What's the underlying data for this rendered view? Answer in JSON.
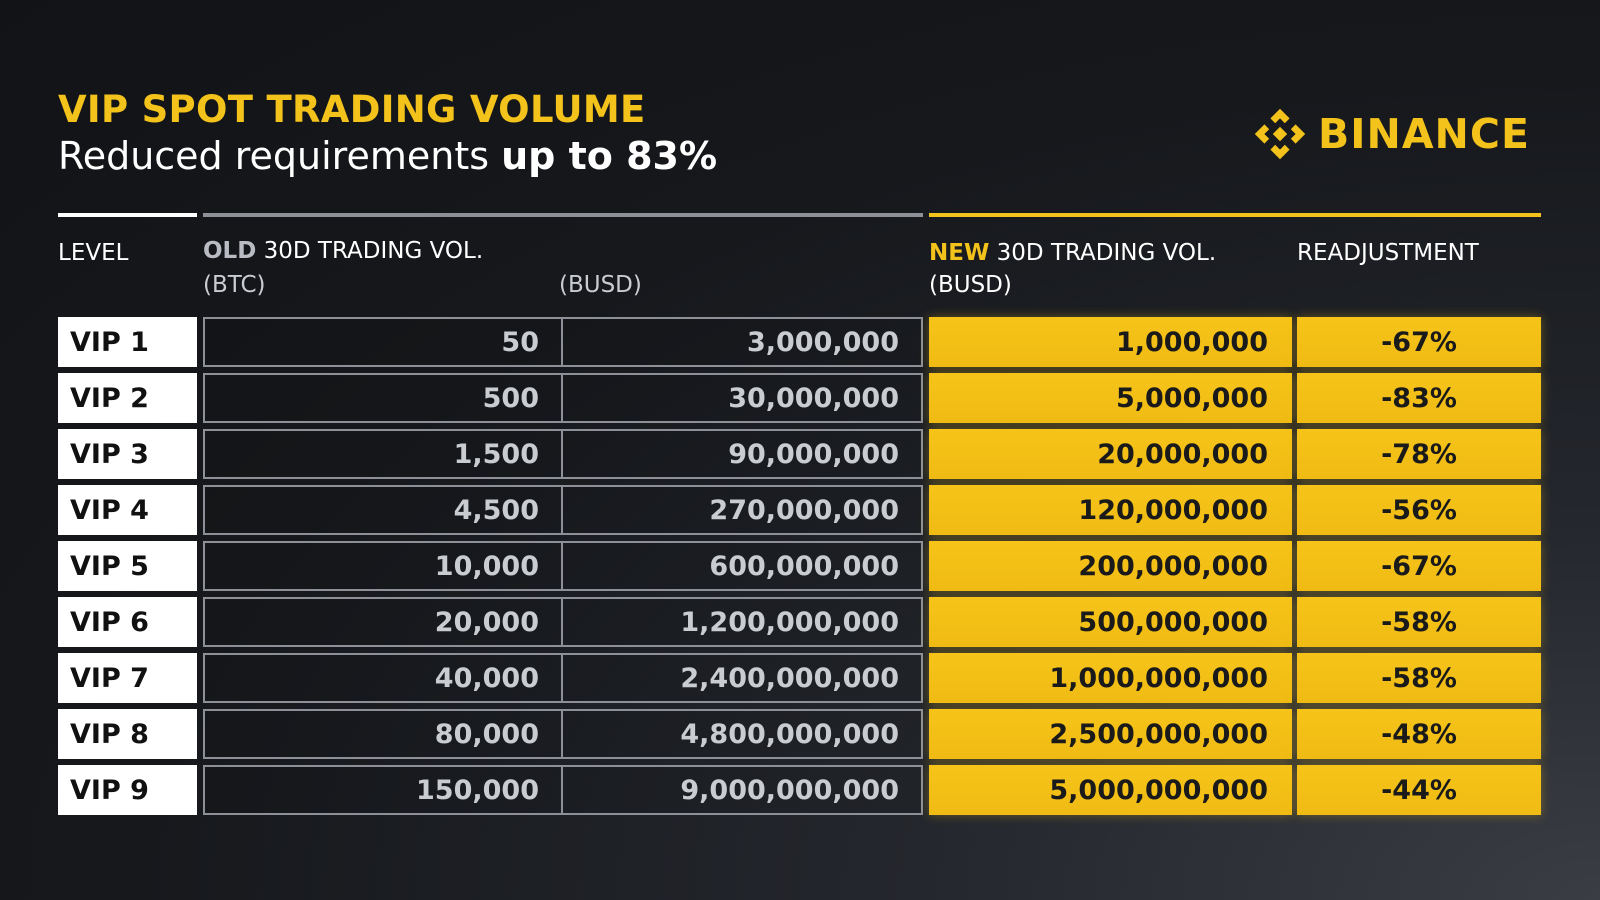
{
  "header": {
    "title": "VIP SPOT TRADING VOLUME",
    "subtitle_prefix": "Reduced requirements ",
    "subtitle_bold": "up to 83%"
  },
  "logo": {
    "icon": "binance-diamond-icon",
    "text": "BINANCE"
  },
  "columns": {
    "level": "LEVEL",
    "old_prefix": "OLD",
    "old_label": " 30D TRADING VOL.",
    "old_btc_unit": "(BTC)",
    "old_busd_unit": "(BUSD)",
    "new_prefix": "NEW",
    "new_label": " 30D TRADING VOL.",
    "new_unit": "(BUSD)",
    "readjustment": "READJUSTMENT"
  },
  "rows": [
    {
      "level": "VIP 1",
      "old_btc": "50",
      "old_busd": "3,000,000",
      "new_busd": "1,000,000",
      "readjustment": "-67%"
    },
    {
      "level": "VIP 2",
      "old_btc": "500",
      "old_busd": "30,000,000",
      "new_busd": "5,000,000",
      "readjustment": "-83%"
    },
    {
      "level": "VIP 3",
      "old_btc": "1,500",
      "old_busd": "90,000,000",
      "new_busd": "20,000,000",
      "readjustment": "-78%"
    },
    {
      "level": "VIP 4",
      "old_btc": "4,500",
      "old_busd": "270,000,000",
      "new_busd": "120,000,000",
      "readjustment": "-56%"
    },
    {
      "level": "VIP 5",
      "old_btc": "10,000",
      "old_busd": "600,000,000",
      "new_busd": "200,000,000",
      "readjustment": "-67%"
    },
    {
      "level": "VIP 6",
      "old_btc": "20,000",
      "old_busd": "1,200,000,000",
      "new_busd": "500,000,000",
      "readjustment": "-58%"
    },
    {
      "level": "VIP 7",
      "old_btc": "40,000",
      "old_busd": "2,400,000,000",
      "new_busd": "1,000,000,000",
      "readjustment": "-58%"
    },
    {
      "level": "VIP 8",
      "old_btc": "80,000",
      "old_busd": "4,800,000,000",
      "new_busd": "2,500,000,000",
      "readjustment": "-48%"
    },
    {
      "level": "VIP 9",
      "old_btc": "150,000",
      "old_busd": "9,000,000,000",
      "new_busd": "5,000,000,000",
      "readjustment": "-44%"
    }
  ],
  "colors": {
    "accent": "#f3c21b",
    "background": "#16181c",
    "old_border": "#8d9097"
  }
}
